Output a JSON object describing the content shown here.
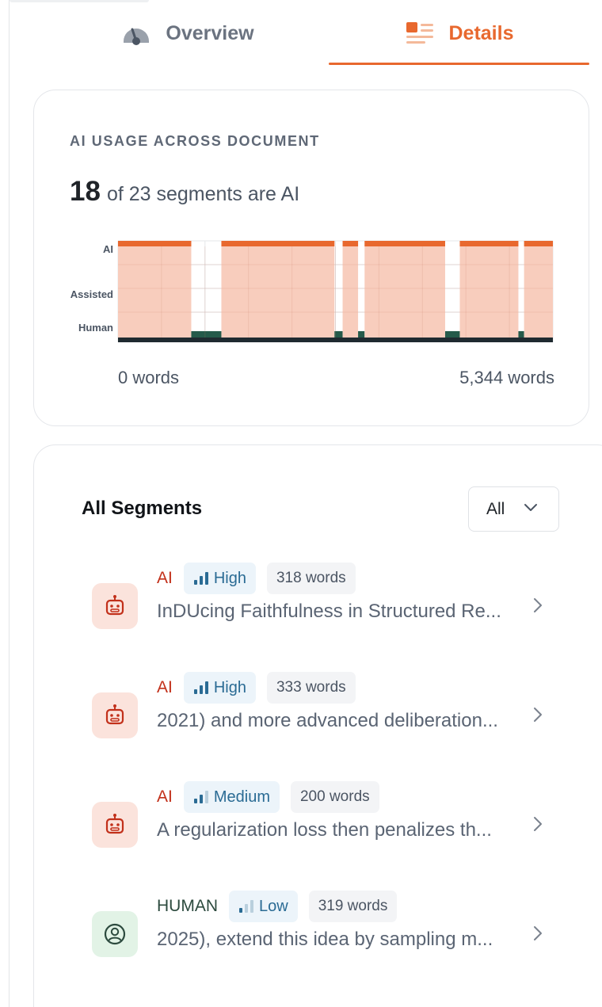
{
  "tabs": [
    {
      "label": "Overview",
      "icon": "gauge-icon",
      "active": false
    },
    {
      "label": "Details",
      "icon": "details-list-icon",
      "active": true
    }
  ],
  "usage": {
    "heading": "AI USAGE ACROSS DOCUMENT",
    "ai_count": "18",
    "summary_text": "of 23 segments are AI",
    "start_label": "0 words",
    "end_label": "5,344 words"
  },
  "chart_data": {
    "type": "area",
    "y_levels": [
      "Human",
      "Assisted",
      "AI"
    ],
    "x_range": [
      0,
      5344
    ],
    "x_unit": "words",
    "colors": {
      "ai_fill": "#f8cdbd",
      "ai_line": "#e8682e",
      "human_line": "#255a4a",
      "baseline": "#1f2a30"
    },
    "segments": [
      {
        "start": 0,
        "end": 900,
        "label": "AI"
      },
      {
        "start": 900,
        "end": 1270,
        "label": "Human"
      },
      {
        "start": 1270,
        "end": 2660,
        "label": "AI"
      },
      {
        "start": 2660,
        "end": 2760,
        "label": "Human"
      },
      {
        "start": 2760,
        "end": 2950,
        "label": "AI"
      },
      {
        "start": 2950,
        "end": 3030,
        "label": "Human"
      },
      {
        "start": 3030,
        "end": 4020,
        "label": "AI"
      },
      {
        "start": 4020,
        "end": 4200,
        "label": "Human"
      },
      {
        "start": 4200,
        "end": 4920,
        "label": "AI"
      },
      {
        "start": 4920,
        "end": 4990,
        "label": "Human"
      },
      {
        "start": 4990,
        "end": 5344,
        "label": "AI"
      }
    ]
  },
  "segments_panel": {
    "title": "All Segments",
    "filter_value": "All",
    "items": [
      {
        "type": "AI",
        "confidence": "High",
        "words": "318 words",
        "preview": "InDUcing Faithfulness in Structured Re..."
      },
      {
        "type": "AI",
        "confidence": "High",
        "words": "333 words",
        "preview": "2021) and more advanced deliberation..."
      },
      {
        "type": "AI",
        "confidence": "Medium",
        "words": "200 words",
        "preview": "A regularization loss then penalizes th..."
      },
      {
        "type": "HUMAN",
        "confidence": "Low",
        "words": "319 words",
        "preview": "2025), extend this idea by sampling m..."
      }
    ]
  }
}
